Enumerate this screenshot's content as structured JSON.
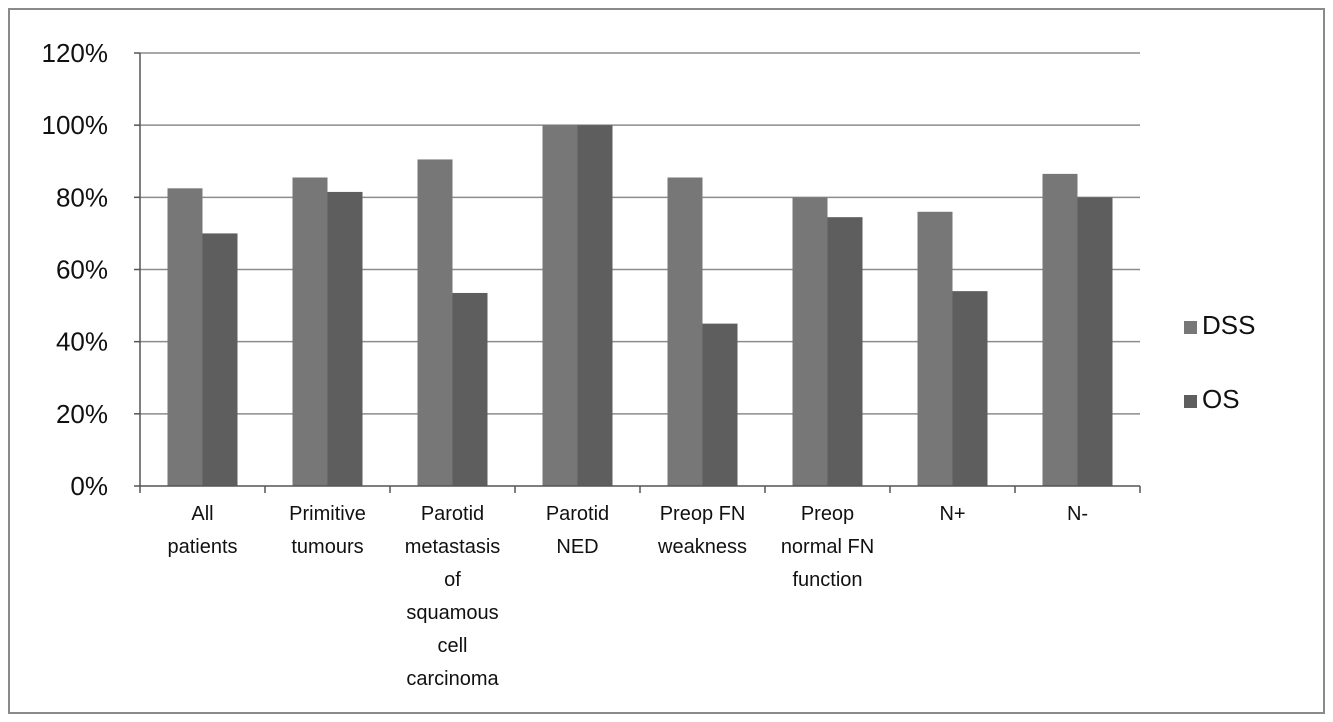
{
  "chart_data": {
    "type": "bar",
    "categories": [
      [
        "All",
        "patients"
      ],
      [
        "Primitive",
        "tumours"
      ],
      [
        "Parotid",
        "metastasis",
        "of",
        "squamous",
        "cell",
        "carcinoma"
      ],
      [
        "Parotid",
        "NED"
      ],
      [
        "Preop FN",
        "weakness"
      ],
      [
        "Preop",
        "normal FN",
        "function"
      ],
      [
        "N+"
      ],
      [
        "N-"
      ]
    ],
    "series": [
      {
        "name": "DSS",
        "values": [
          82.5,
          85.5,
          90.5,
          100,
          85.5,
          80,
          76,
          86.5
        ],
        "color": "#777777"
      },
      {
        "name": "OS",
        "values": [
          70,
          81.5,
          53.5,
          100,
          45,
          74.5,
          54,
          80
        ],
        "color": "#5e5e5e"
      }
    ],
    "ylim": [
      0,
      120
    ],
    "yticks": [
      "0%",
      "20%",
      "40%",
      "60%",
      "80%",
      "100%",
      "120%"
    ],
    "grid": true,
    "legend_position": "right",
    "title": "",
    "xlabel": "",
    "ylabel": ""
  }
}
